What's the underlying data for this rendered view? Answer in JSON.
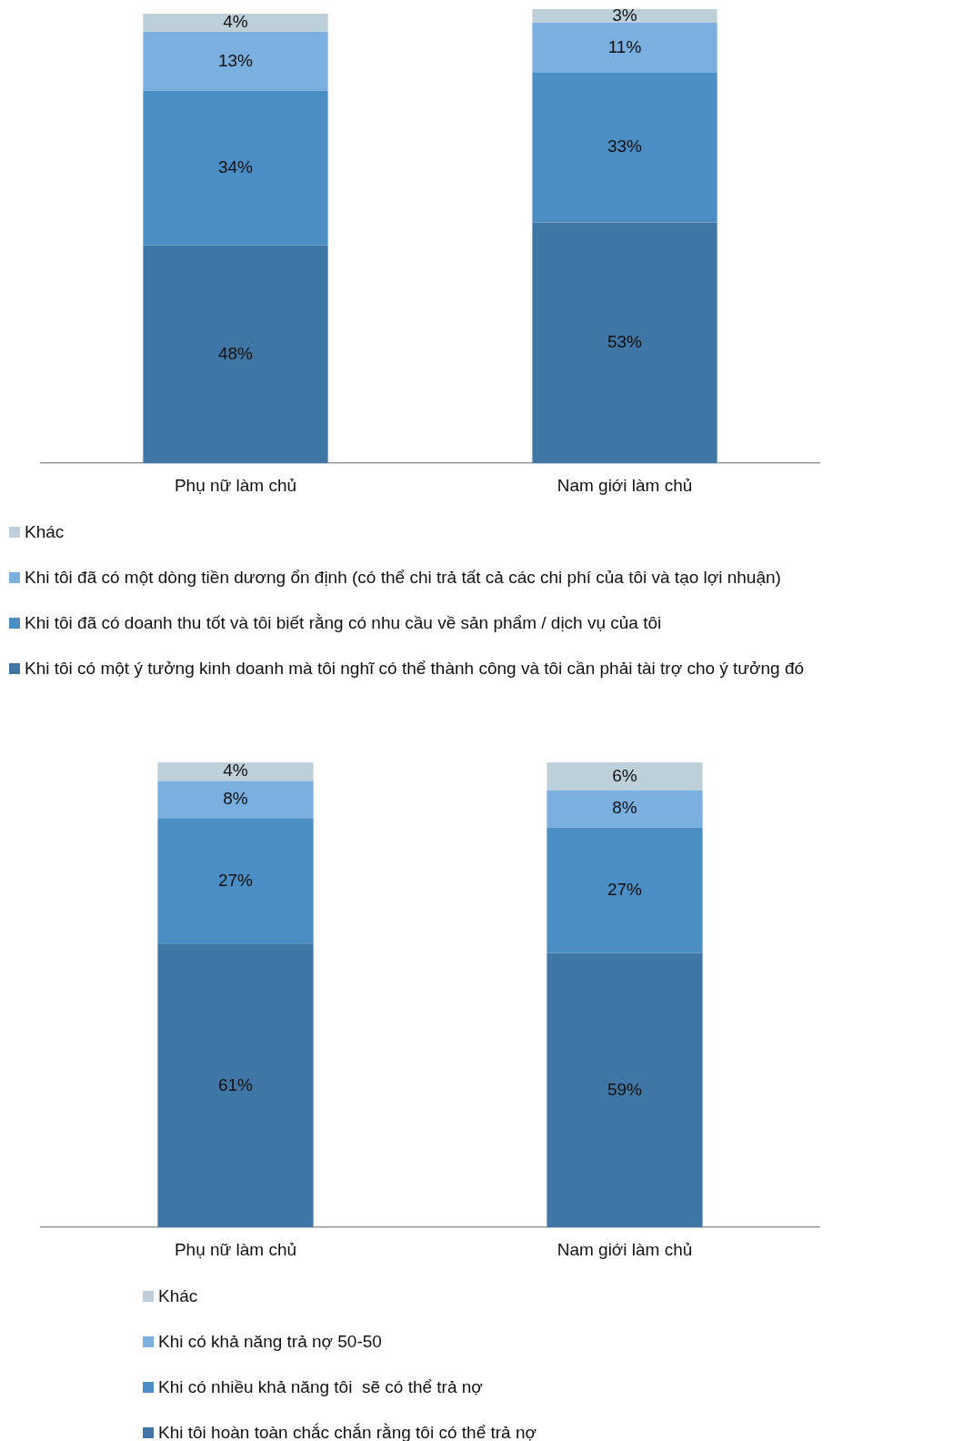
{
  "chart_data": [
    {
      "type": "bar",
      "stacked": true,
      "grid": false,
      "legend": "bottom",
      "categories": [
        "Phụ nữ làm chủ",
        "Nam giới làm chủ"
      ],
      "series": [
        {
          "name": "Khi tôi có một ý tưởng kinh doanh mà tôi nghĩ có thể thành công và tôi cần phải tài trợ cho ý tưởng đó",
          "color": "#3f76a6",
          "values": [
            48,
            53
          ],
          "value_labels": [
            "48%",
            "53%"
          ]
        },
        {
          "name": "Khi tôi đã có doanh thu tốt và tôi biết rằng có nhu cầu về sản phẩm / dịch vụ của tôi",
          "color": "#4b8ec6",
          "values": [
            34,
            33
          ],
          "value_labels": [
            "34%",
            "33%"
          ]
        },
        {
          "name": "Khi tôi đã có một dòng tiền dương ổn định (có thể chi trả tất cả các chi phí của tôi và tạo lợi nhuận)",
          "color": "#7aafdf",
          "values": [
            13,
            11
          ],
          "value_labels": [
            "13%",
            "11%"
          ]
        },
        {
          "name": "Khác",
          "color": "#bdd0da",
          "values": [
            4,
            3
          ],
          "value_labels": [
            "4%",
            "3%"
          ]
        }
      ]
    },
    {
      "type": "bar",
      "stacked": true,
      "grid": false,
      "legend": "bottom",
      "categories": [
        "Phụ nữ làm chủ",
        "Nam giới làm chủ"
      ],
      "series": [
        {
          "name": "Khi tôi hoàn toàn chắc chắn rằng tôi có thể trả nợ",
          "color": "#3f76a6",
          "values": [
            61,
            59
          ],
          "value_labels": [
            "61%",
            "59%"
          ]
        },
        {
          "name": "Khi có nhiều khả năng tôi  sẽ có thể trả nợ",
          "color": "#4b8ec6",
          "values": [
            27,
            27
          ],
          "value_labels": [
            "27%",
            "27%"
          ]
        },
        {
          "name": "Khi có khả năng trả nợ 50-50",
          "color": "#7aafdf",
          "values": [
            8,
            8
          ],
          "value_labels": [
            "8%",
            "8%"
          ]
        },
        {
          "name": "Khác",
          "color": "#bdd0da",
          "values": [
            4,
            6
          ],
          "value_labels": [
            "4%",
            "6%"
          ]
        }
      ]
    }
  ]
}
